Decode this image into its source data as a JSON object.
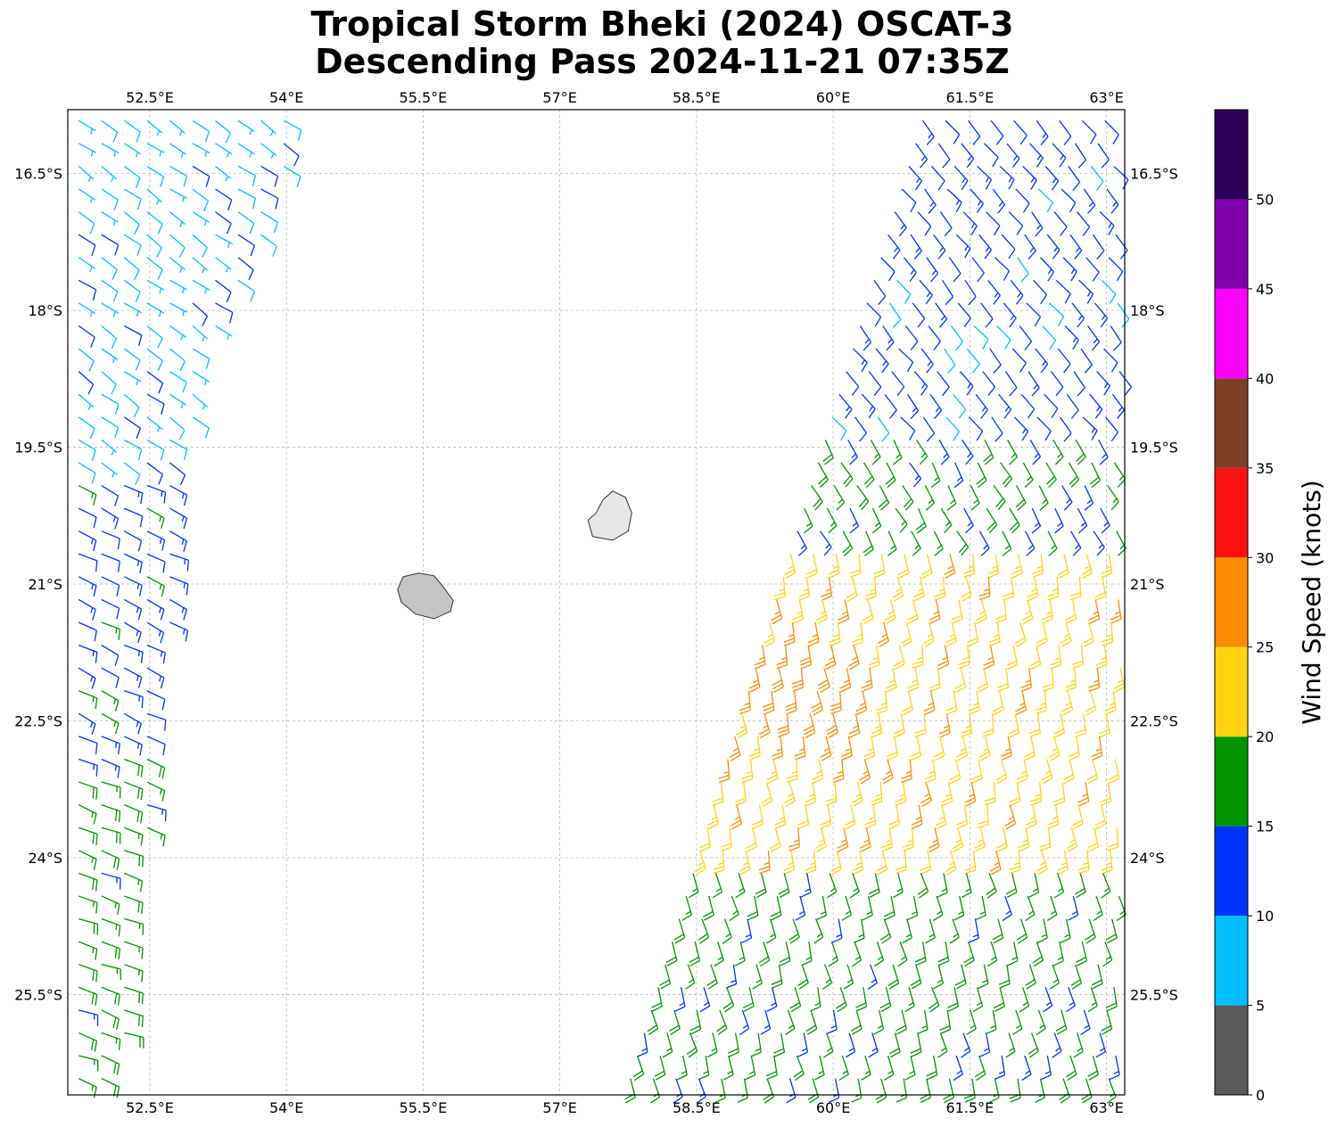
{
  "title": {
    "line1": "Tropical Storm Bheki (2024) OSCAT-3",
    "line2": "Descending Pass 2024-11-21 07:35Z"
  },
  "chart_data": {
    "type": "wind-barb map",
    "title": "Tropical Storm Bheki (2024) OSCAT-3 Descending Pass 2024-11-21 07:35Z",
    "lon_range": [
      51.6,
      63.2
    ],
    "lat_range": [
      -26.6,
      -15.8
    ],
    "lon_ticks": [
      {
        "value": 52.5,
        "label": "52.5°E"
      },
      {
        "value": 54.0,
        "label": "54°E"
      },
      {
        "value": 55.5,
        "label": "55.5°E"
      },
      {
        "value": 57.0,
        "label": "57°E"
      },
      {
        "value": 58.5,
        "label": "58.5°E"
      },
      {
        "value": 60.0,
        "label": "60°E"
      },
      {
        "value": 61.5,
        "label": "61.5°E"
      },
      {
        "value": 63.0,
        "label": "63°E"
      }
    ],
    "lat_ticks": [
      {
        "value": -16.5,
        "label": "16.5°S"
      },
      {
        "value": -18.0,
        "label": "18°S"
      },
      {
        "value": -19.5,
        "label": "19.5°S"
      },
      {
        "value": -21.0,
        "label": "21°S"
      },
      {
        "value": -22.5,
        "label": "22.5°S"
      },
      {
        "value": -24.0,
        "label": "24°S"
      },
      {
        "value": -25.5,
        "label": "25.5°S"
      }
    ],
    "grid": true,
    "islands": [
      "Réunion",
      "Mauritius"
    ],
    "colorbar": {
      "label": "Wind Speed (knots)",
      "range": [
        0,
        55
      ],
      "tick_labels": [
        "0",
        "5",
        "10",
        "15",
        "20",
        "25",
        "30",
        "35",
        "40",
        "45",
        "50"
      ],
      "bins": [
        {
          "range": [
            0,
            5
          ],
          "color": "#5a5a5a"
        },
        {
          "range": [
            5,
            10
          ],
          "color": "#00bfff"
        },
        {
          "range": [
            10,
            15
          ],
          "color": "#0033ff"
        },
        {
          "range": [
            15,
            20
          ],
          "color": "#009600"
        },
        {
          "range": [
            20,
            25
          ],
          "color": "#ffd40f"
        },
        {
          "range": [
            25,
            30
          ],
          "color": "#ff8c00"
        },
        {
          "range": [
            30,
            35
          ],
          "color": "#ff0f0f"
        },
        {
          "range": [
            35,
            40
          ],
          "color": "#7f3f25"
        },
        {
          "range": [
            40,
            45
          ],
          "color": "#ff00ff"
        },
        {
          "range": [
            45,
            50
          ],
          "color": "#8000b0"
        },
        {
          "range": [
            50,
            55
          ],
          "color": "#2d005a"
        }
      ]
    },
    "swaths": [
      {
        "name": "west",
        "left_edge": [
          [
            51.6,
            -15.8
          ],
          [
            51.6,
            -26.6
          ]
        ],
        "right_edge": [
          [
            54.2,
            -15.8
          ],
          [
            53.9,
            -17.2
          ],
          [
            53.1,
            -18.5
          ],
          [
            52.2,
            -26.6
          ]
        ],
        "wind_zones": [
          {
            "lat_range": [
              -15.8,
              -19.8
            ],
            "speed_kt": 8,
            "direction_deg": 125
          },
          {
            "lat_range": [
              -19.8,
              -22.7
            ],
            "speed_kt": 13,
            "direction_deg": 115
          },
          {
            "lat_range": [
              -22.7,
              -26.6
            ],
            "speed_kt": 17,
            "direction_deg": 110
          }
        ]
      },
      {
        "name": "east",
        "left_edge": [
          [
            60.9,
            -15.8
          ],
          [
            57.6,
            -26.6
          ]
        ],
        "right_edge": [
          [
            63.2,
            -15.8
          ],
          [
            63.2,
            -26.6
          ]
        ],
        "wind_zones": [
          {
            "lat_range": [
              -15.8,
              -19.2
            ],
            "speed_kt": 12,
            "direction_deg": 140
          },
          {
            "lat_range": [
              -19.2,
              -20.5
            ],
            "speed_kt": 17,
            "direction_deg": 150
          },
          {
            "lat_range": [
              -20.5,
              -24.0
            ],
            "speed_kt": 23,
            "direction_deg": 170
          },
          {
            "lat_range": [
              -24.0,
              -26.6
            ],
            "speed_kt": 17,
            "direction_deg": 165
          }
        ],
        "max_wind": {
          "lon": 59.7,
          "lat": -22.1,
          "speed_kt": 31
        }
      }
    ]
  }
}
